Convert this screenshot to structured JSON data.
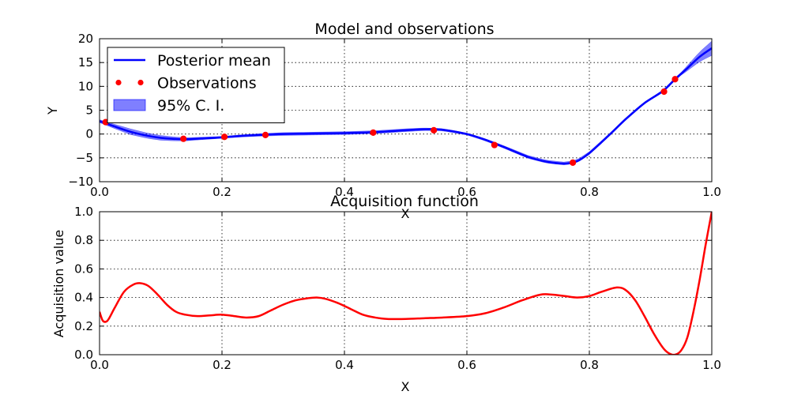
{
  "chart_data": [
    {
      "type": "line",
      "title": "Model and observations",
      "xlabel": "X",
      "ylabel": "Y",
      "xlim": [
        0.0,
        1.0
      ],
      "ylim": [
        -10,
        20
      ],
      "xticks": [
        "0.0",
        "0.2",
        "0.4",
        "0.6",
        "0.8",
        "1.0"
      ],
      "yticks": [
        "20",
        "15",
        "10",
        "5",
        "0",
        "−5",
        "−10"
      ],
      "grid": true,
      "legend_position": "top-left",
      "series": [
        {
          "name": "Posterior mean",
          "kind": "line",
          "color": "#0000ff",
          "x": [
            0.0,
            0.02,
            0.05,
            0.08,
            0.1,
            0.12,
            0.14,
            0.17,
            0.2,
            0.23,
            0.26,
            0.3,
            0.35,
            0.4,
            0.45,
            0.5,
            0.53,
            0.56,
            0.6,
            0.63,
            0.66,
            0.7,
            0.73,
            0.76,
            0.78,
            0.8,
            0.83,
            0.86,
            0.89,
            0.92,
            0.94,
            0.96,
            0.98,
            1.0
          ],
          "y": [
            2.7,
            1.8,
            0.5,
            -0.4,
            -0.8,
            -1.0,
            -1.1,
            -0.9,
            -0.7,
            -0.4,
            -0.2,
            0.0,
            0.1,
            0.2,
            0.4,
            0.8,
            1.0,
            0.9,
            0.0,
            -1.2,
            -2.7,
            -4.8,
            -5.8,
            -6.2,
            -5.7,
            -4.0,
            -0.5,
            3.2,
            6.5,
            9.0,
            11.5,
            13.8,
            16.2,
            18.0
          ]
        },
        {
          "name": "Observations",
          "kind": "points",
          "color": "#ff0000",
          "x": [
            0.01,
            0.137,
            0.204,
            0.271,
            0.447,
            0.546,
            0.645,
            0.773,
            0.922,
            0.94
          ],
          "y": [
            2.5,
            -1.0,
            -0.6,
            -0.2,
            0.3,
            0.8,
            -2.3,
            -6.0,
            8.9,
            11.5
          ]
        },
        {
          "name": "95% C. I.",
          "kind": "band",
          "color": "#0000ff",
          "x": [
            0.0,
            0.05,
            0.1,
            0.15,
            0.2,
            0.3,
            0.4,
            0.5,
            0.6,
            0.7,
            0.8,
            0.9,
            0.95,
            1.0
          ],
          "half_width": [
            0.3,
            0.6,
            0.5,
            0.3,
            0.2,
            0.3,
            0.3,
            0.3,
            0.2,
            0.3,
            0.3,
            0.2,
            0.3,
            1.5
          ]
        }
      ]
    },
    {
      "type": "line",
      "title": "Acquisition function",
      "xlabel": "X",
      "ylabel": "Acquisition value",
      "xlim": [
        0.0,
        1.0
      ],
      "ylim": [
        0.0,
        1.0
      ],
      "xticks": [
        "0.0",
        "0.2",
        "0.4",
        "0.6",
        "0.8",
        "1.0"
      ],
      "yticks": [
        "1.0",
        "0.8",
        "0.6",
        "0.4",
        "0.2",
        "0.0"
      ],
      "grid": true,
      "series": [
        {
          "color": "#ff0000",
          "x": [
            0.0,
            0.005,
            0.01,
            0.015,
            0.025,
            0.04,
            0.055,
            0.067,
            0.08,
            0.095,
            0.11,
            0.125,
            0.14,
            0.16,
            0.18,
            0.2,
            0.22,
            0.24,
            0.26,
            0.28,
            0.3,
            0.32,
            0.34,
            0.355,
            0.37,
            0.39,
            0.41,
            0.43,
            0.45,
            0.47,
            0.5,
            0.53,
            0.56,
            0.6,
            0.63,
            0.66,
            0.69,
            0.72,
            0.74,
            0.76,
            0.78,
            0.8,
            0.82,
            0.845,
            0.86,
            0.875,
            0.89,
            0.905,
            0.92,
            0.93,
            0.94,
            0.95,
            0.96,
            0.97,
            0.98,
            0.99,
            1.0
          ],
          "y": [
            0.3,
            0.24,
            0.23,
            0.25,
            0.33,
            0.44,
            0.49,
            0.5,
            0.48,
            0.42,
            0.35,
            0.3,
            0.28,
            0.27,
            0.275,
            0.28,
            0.27,
            0.26,
            0.27,
            0.31,
            0.35,
            0.38,
            0.395,
            0.4,
            0.39,
            0.36,
            0.32,
            0.28,
            0.26,
            0.25,
            0.25,
            0.255,
            0.26,
            0.27,
            0.29,
            0.33,
            0.38,
            0.42,
            0.42,
            0.41,
            0.4,
            0.41,
            0.44,
            0.47,
            0.45,
            0.38,
            0.27,
            0.15,
            0.05,
            0.01,
            0.0,
            0.03,
            0.12,
            0.3,
            0.52,
            0.77,
            1.0
          ]
        }
      ]
    }
  ]
}
